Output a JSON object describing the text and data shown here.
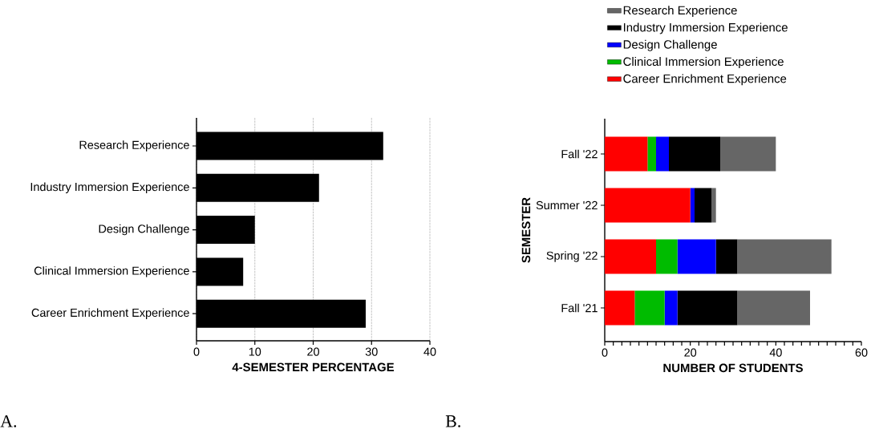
{
  "chart_data": [
    {
      "type": "bar",
      "orientation": "horizontal",
      "categories": [
        "Research Experience",
        "Industry Immersion Experience",
        "Design Challenge",
        "Clinical Immersion Experience",
        "Career Enrichment Experience"
      ],
      "values": [
        32,
        21,
        10,
        8,
        29
      ],
      "color": "#000000",
      "xlim": [
        0,
        40
      ],
      "xticks": [
        0,
        10,
        20,
        30,
        40
      ],
      "grid": "x",
      "xlabel": "4-SEMESTER PERCENTAGE",
      "annotations": [
        "A."
      ]
    },
    {
      "type": "bar",
      "orientation": "horizontal",
      "stacked": true,
      "categories": [
        "Fall '22",
        "Summer '22",
        "Spring '22",
        "Fall '21"
      ],
      "series": [
        {
          "name": "Career Enrichment Experience",
          "color": "#ff0000",
          "values": [
            10,
            20,
            12,
            7
          ]
        },
        {
          "name": "Clinical Immersion Experience",
          "color": "#00bb00",
          "values": [
            2,
            0,
            5,
            7
          ]
        },
        {
          "name": "Design Challenge",
          "color": "#0000ff",
          "values": [
            3,
            1,
            9,
            3
          ]
        },
        {
          "name": "Industry Immersion Experience",
          "color": "#000000",
          "values": [
            12,
            4,
            5,
            14
          ]
        },
        {
          "name": "Research Experience",
          "color": "#666666",
          "values": [
            13,
            1,
            22,
            17
          ]
        }
      ],
      "xlim": [
        0,
        60
      ],
      "xticks": [
        0,
        {
          "value": 2,
          "label": null
        },
        {
          "value": 4,
          "label": null
        },
        {
          "value": 6,
          "label": null
        },
        {
          "value": 8,
          "label": null
        },
        {
          "value": 10,
          "label": null
        },
        {
          "value": 12,
          "label": null
        },
        {
          "value": 14,
          "label": null
        },
        {
          "value": 16,
          "label": null
        },
        {
          "value": 18,
          "label": null
        },
        20,
        {
          "value": 22,
          "label": null
        },
        {
          "value": 24,
          "label": null
        },
        {
          "value": 26,
          "label": null
        },
        {
          "value": 28,
          "label": null
        },
        {
          "value": 30,
          "label": null
        },
        {
          "value": 32,
          "label": null
        },
        {
          "value": 34,
          "label": null
        },
        {
          "value": 36,
          "label": null
        },
        {
          "value": 38,
          "label": null
        },
        40,
        {
          "value": 42,
          "label": null
        },
        {
          "value": 44,
          "label": null
        },
        {
          "value": 46,
          "label": null
        },
        {
          "value": 48,
          "label": null
        },
        {
          "value": 50,
          "label": null
        },
        {
          "value": 52,
          "label": null
        },
        {
          "value": 54,
          "label": null
        },
        {
          "value": 56,
          "label": null
        },
        {
          "value": 58,
          "label": null
        },
        60
      ],
      "xlabel": "NUMBER OF STUDENTS",
      "ylabel": "SEMESTER",
      "legend": "top",
      "annotations": [
        "B."
      ]
    }
  ]
}
